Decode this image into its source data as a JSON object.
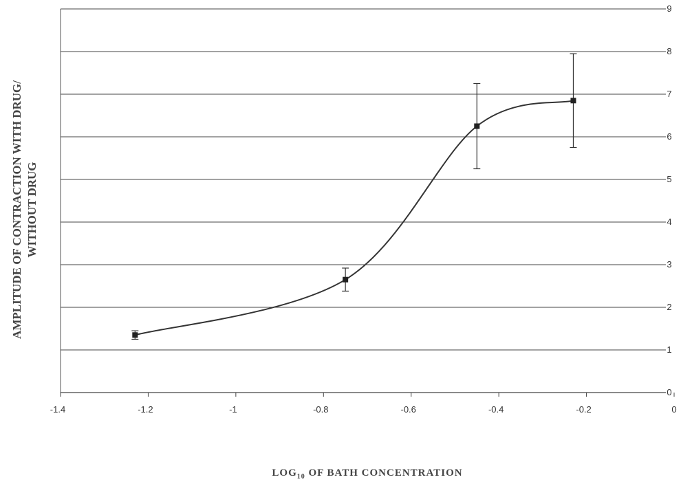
{
  "chart_data": {
    "type": "line",
    "xlabel": "LOG",
    "xlabel_sub": "10",
    "xlabel_rest": " OF BATH CONCENTRATION",
    "ylabel_line1": "AMPLITUDE OF CONTRACTION WITH DRUG/",
    "ylabel_line2": "WITHOUT DRUG",
    "xlim": [
      -1.4,
      0
    ],
    "ylim": [
      0,
      9
    ],
    "x_ticks": [
      -1.4,
      -1.2,
      -1,
      -0.8,
      -0.6,
      -0.4,
      -0.2,
      0
    ],
    "x_tick_labels": [
      "-1.4",
      "-1.2",
      "-1",
      "-0.8",
      "-0.6",
      "-0.4",
      "-0.2",
      "0"
    ],
    "y_ticks": [
      0,
      1,
      2,
      3,
      4,
      5,
      6,
      7,
      8,
      9
    ],
    "y_tick_labels": [
      "0",
      "1",
      "2",
      "3",
      "4",
      "5",
      "6",
      "7",
      "8",
      "9"
    ],
    "y_axis_side": "right",
    "grid": "horizontal",
    "series": [
      {
        "x": [
          -1.23,
          -0.75,
          -0.45,
          -0.23
        ],
        "y": [
          1.35,
          2.65,
          6.25,
          6.85
        ],
        "error": [
          0.1,
          0.27,
          1.0,
          1.1
        ],
        "color": "#333333",
        "curve": "smooth"
      }
    ]
  }
}
